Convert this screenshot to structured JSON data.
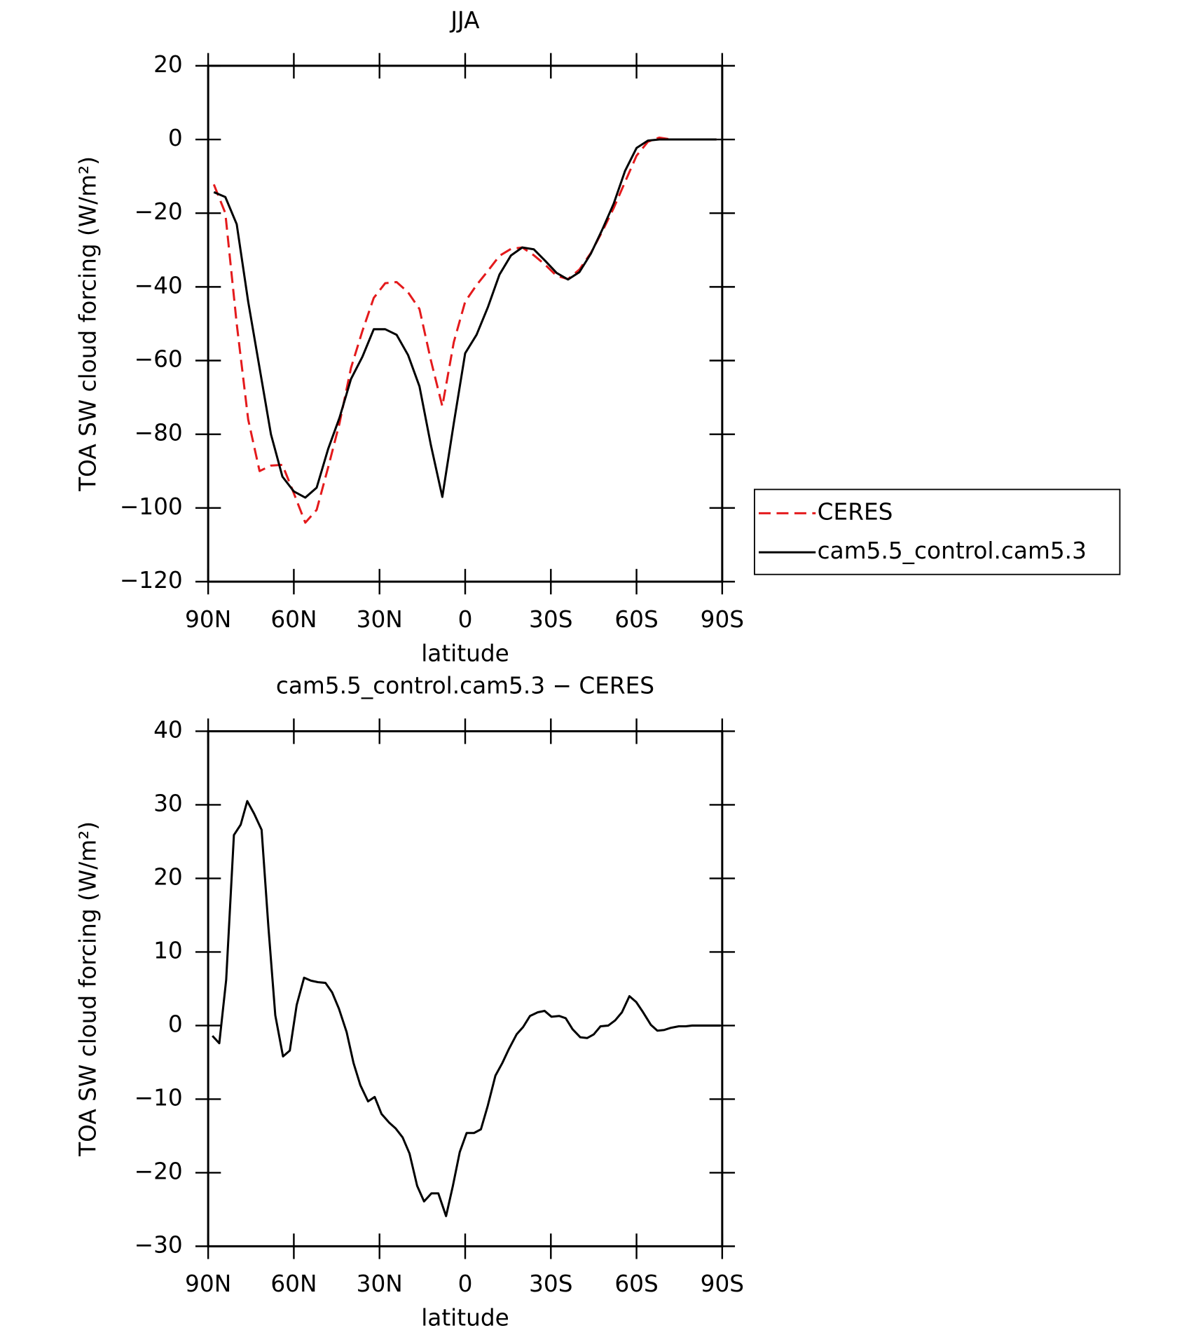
{
  "chart_data": [
    {
      "type": "line",
      "title": "JJA",
      "xlabel": "latitude",
      "ylabel": "TOA SW cloud forcing (W/m²)",
      "x": [
        88,
        84,
        80,
        76,
        72,
        68,
        64,
        60,
        56,
        52,
        48,
        44,
        40,
        36,
        32,
        28,
        24,
        20,
        16,
        12,
        8,
        4,
        0,
        -4,
        -8,
        -12,
        -16,
        -20,
        -24,
        -28,
        -32,
        -36,
        -40,
        -44,
        -48,
        -52,
        -56,
        -60,
        -64,
        -68,
        -72,
        -76,
        -80,
        -84,
        -88
      ],
      "series": [
        {
          "name": "CERES",
          "color": "#e41a1c",
          "dashed": true,
          "values": [
            -12.2,
            -20,
            -50,
            -76,
            -90,
            -88.5,
            -88.3,
            -96,
            -104,
            -100.5,
            -89,
            -77,
            -62,
            -52,
            -43,
            -39,
            -38.7,
            -41.5,
            -46,
            -60,
            -72.4,
            -55,
            -44,
            -39.5,
            -35.6,
            -31.6,
            -29.7,
            -29.3,
            -31.4,
            -34,
            -37,
            -37.9,
            -35.3,
            -30.8,
            -25,
            -18.6,
            -11.5,
            -4.4,
            -0.6,
            0.5,
            0,
            0,
            0,
            0,
            0
          ]
        },
        {
          "name": "cam5.5_control.cam5.3",
          "color": "#000000",
          "dashed": false,
          "values": [
            -14.3,
            -15.6,
            -23,
            -44,
            -62,
            -80,
            -91.5,
            -95.5,
            -97.2,
            -94.5,
            -84,
            -75.5,
            -65,
            -59,
            -51.5,
            -51.5,
            -53,
            -58.5,
            -67,
            -83,
            -97,
            -77,
            -58,
            -53,
            -45.4,
            -36.7,
            -31.5,
            -29.3,
            -29.8,
            -32.9,
            -36.2,
            -38,
            -36,
            -31,
            -24.5,
            -17.4,
            -8.5,
            -2.3,
            -0.3,
            0,
            0,
            0,
            0,
            0,
            0
          ]
        }
      ],
      "xlim": [
        90,
        -90
      ],
      "xticks": [
        {
          "value": 90,
          "label": "90N"
        },
        {
          "value": 60,
          "label": "60N"
        },
        {
          "value": 30,
          "label": "30N"
        },
        0,
        {
          "value": -30,
          "label": "30S"
        },
        {
          "value": -60,
          "label": "60S"
        },
        {
          "value": -90,
          "label": "90S"
        }
      ],
      "ylim": [
        -120,
        20
      ],
      "yticks": [
        {
          "value": -120,
          "label": "−120"
        },
        {
          "value": -100,
          "label": "−100"
        },
        {
          "value": -80,
          "label": "−80"
        },
        {
          "value": -60,
          "label": "−60"
        },
        {
          "value": -40,
          "label": "−40"
        },
        {
          "value": -20,
          "label": "−20"
        },
        0,
        20
      ],
      "legend": "right"
    },
    {
      "type": "line",
      "title": "cam5.5_control.cam5.3 − CERES",
      "xlabel": "latitude",
      "ylabel": "TOA SW cloud forcing (W/m²)",
      "x": [
        88.5,
        86.1,
        83.7,
        81,
        78.6,
        76.3,
        73.9,
        71.3,
        68.9,
        66.5,
        63.8,
        61.4,
        59,
        56.4,
        54,
        51.6,
        48.9,
        46.6,
        44.2,
        41.5,
        39.1,
        36.7,
        34,
        31.7,
        29.3,
        26.6,
        24.3,
        21.9,
        19.5,
        16.8,
        14.4,
        11.8,
        9.4,
        6.7,
        4.3,
        1.9,
        -0.5,
        -3.1,
        -5.5,
        -7.9,
        -10.6,
        -13,
        -15.3,
        -18,
        -20.3,
        -22.7,
        -25.4,
        -27.8,
        -30.2,
        -32.9,
        -35.2,
        -37.6,
        -40.3,
        -42.7,
        -45,
        -47.4,
        -50.1,
        -52.5,
        -54.9,
        -57.5,
        -59.9,
        -62.3,
        -65,
        -67.3,
        -69.7,
        -72.1,
        -74.8,
        -77.2,
        -79.5,
        -89.4
      ],
      "values": [
        -1.4,
        -2.4,
        6.2,
        25.9,
        27.3,
        30.5,
        28.8,
        26.6,
        13.4,
        1.4,
        -4.2,
        -3.4,
        2.8,
        6.5,
        6.1,
        5.9,
        5.8,
        4.5,
        2.3,
        -0.9,
        -5.1,
        -8.1,
        -10.3,
        -9.7,
        -12,
        -13.2,
        -14,
        -15.2,
        -17.4,
        -21.8,
        -23.9,
        -22.8,
        -22.8,
        -25.9,
        -21.8,
        -17.2,
        -14.6,
        -14.6,
        -14.1,
        -10.9,
        -6.8,
        -5.1,
        -3.2,
        -1.2,
        -0.2,
        1.3,
        1.8,
        2,
        1.2,
        1.3,
        1,
        -0.5,
        -1.6,
        -1.7,
        -1.2,
        -0.1,
        0,
        0.7,
        1.8,
        4,
        3.2,
        1.8,
        0.1,
        -0.7,
        -0.6,
        -0.3,
        -0.1,
        -0.1,
        0,
        0
      ],
      "color": "#000000",
      "xlim": [
        90,
        -90
      ],
      "xticks": [
        {
          "value": 90,
          "label": "90N"
        },
        {
          "value": 60,
          "label": "60N"
        },
        {
          "value": 30,
          "label": "30N"
        },
        0,
        {
          "value": -30,
          "label": "30S"
        },
        {
          "value": -60,
          "label": "60S"
        },
        {
          "value": -90,
          "label": "90S"
        }
      ],
      "ylim": [
        -30,
        40
      ],
      "yticks": [
        {
          "value": -30,
          "label": "−30"
        },
        {
          "value": -20,
          "label": "−20"
        },
        {
          "value": -10,
          "label": "−10"
        },
        0,
        10,
        20,
        30,
        40
      ]
    }
  ]
}
